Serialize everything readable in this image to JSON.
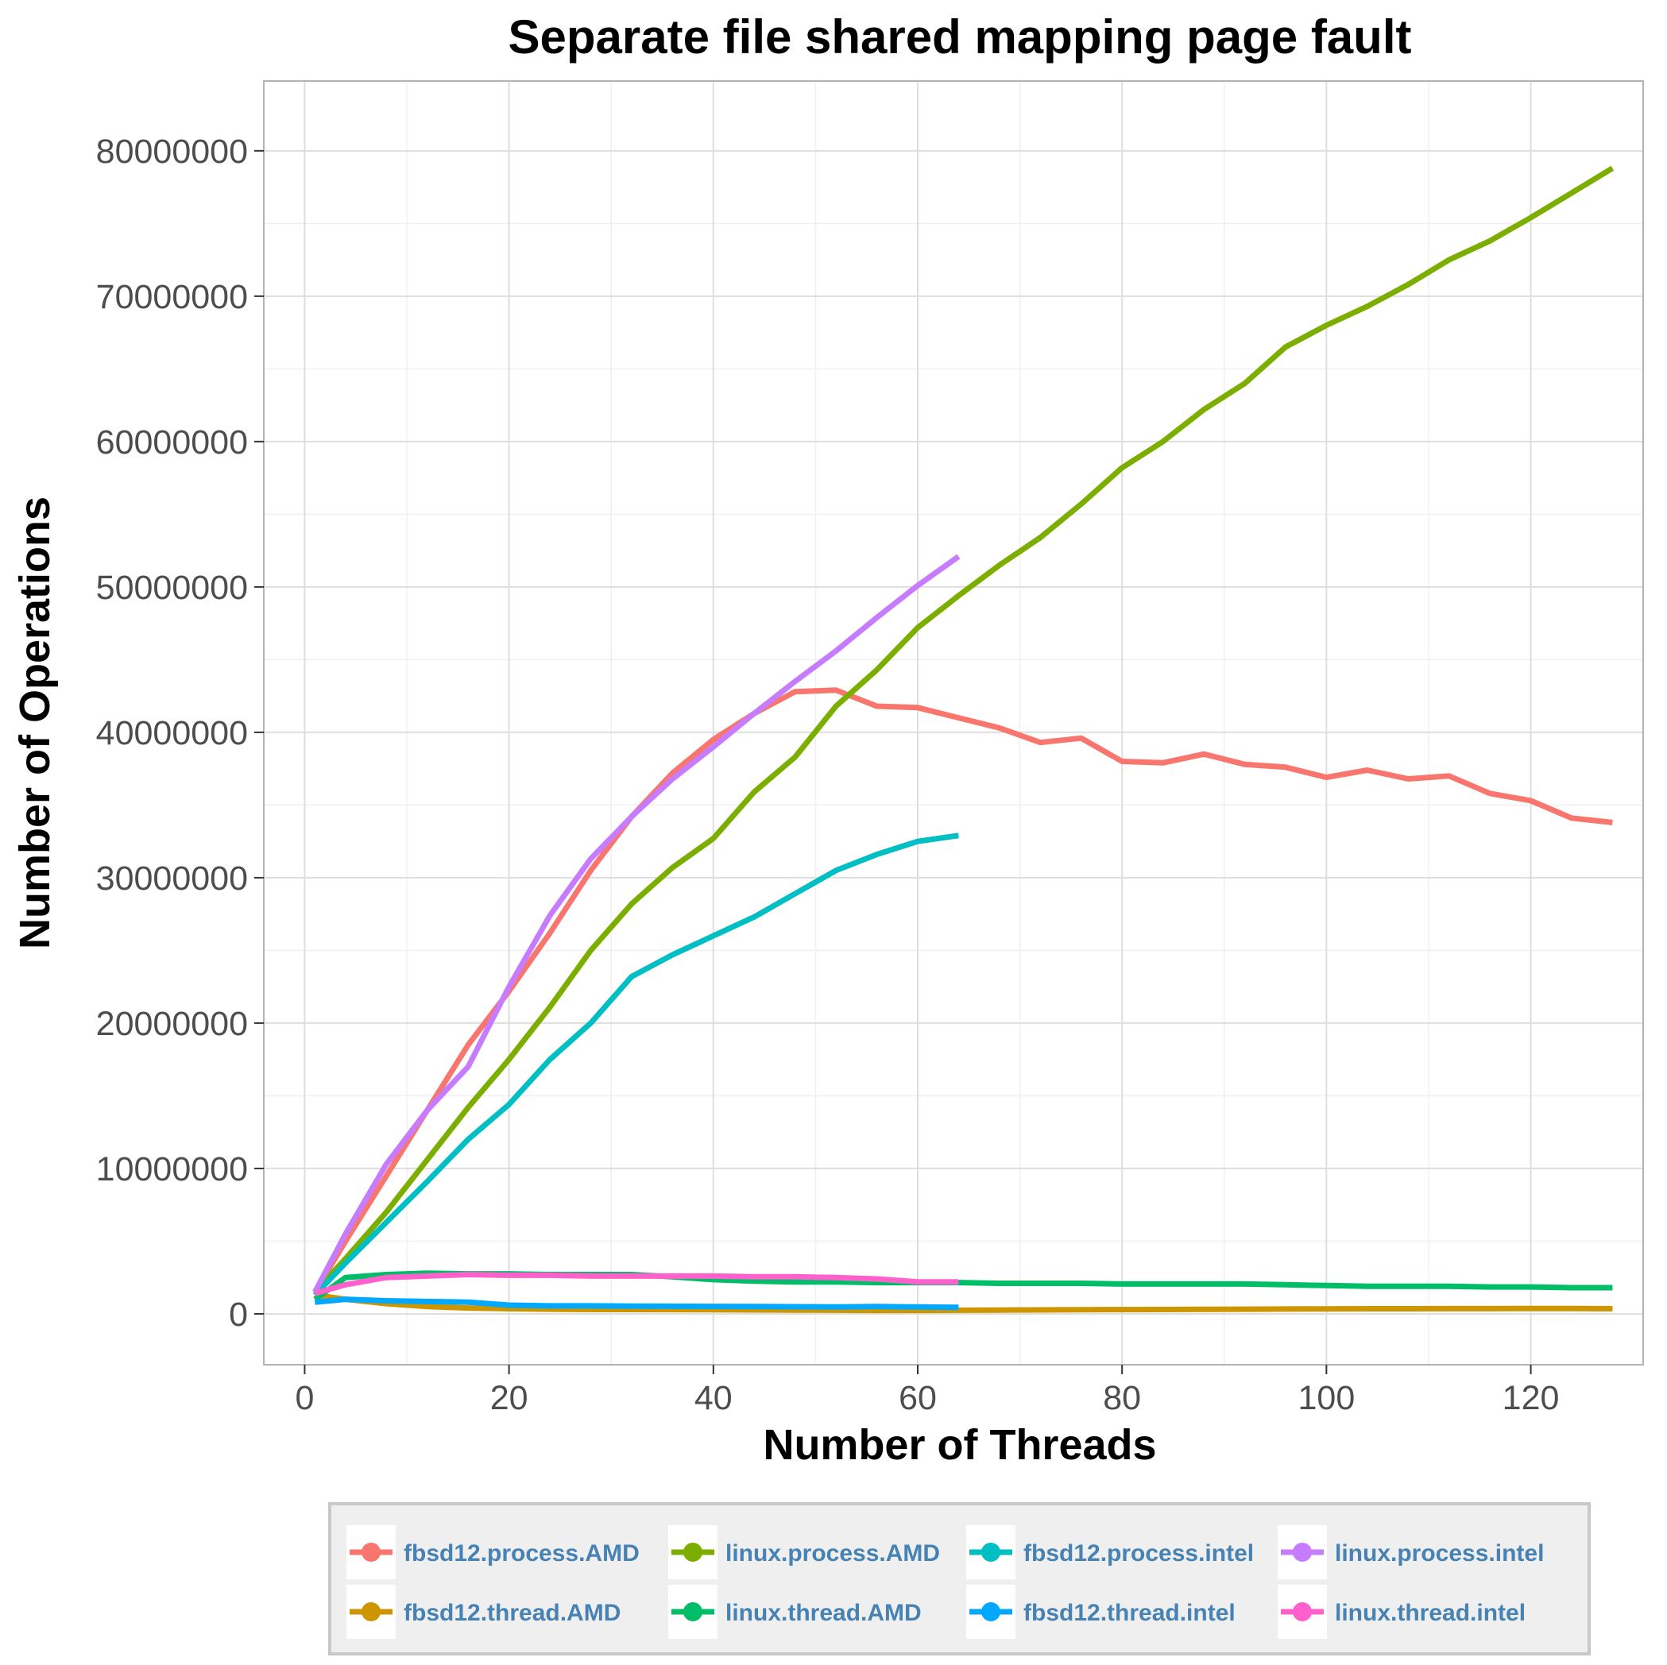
{
  "chart_data": {
    "type": "line",
    "title": "Separate file shared mapping page fault",
    "xlabel": "Number of Threads",
    "ylabel": "Number of Operations",
    "xlim": [
      -4,
      131
    ],
    "ylim": [
      -3500000,
      84800000
    ],
    "x_ticks": [
      0,
      20,
      40,
      60,
      80,
      100,
      120
    ],
    "y_ticks": [
      0,
      10000000,
      20000000,
      30000000,
      40000000,
      50000000,
      60000000,
      70000000,
      80000000
    ],
    "x_tick_labels": [
      "0",
      "20",
      "40",
      "60",
      "80",
      "100",
      "120"
    ],
    "y_tick_labels": [
      "0",
      "10000000",
      "20000000",
      "30000000",
      "40000000",
      "50000000",
      "60000000",
      "70000000",
      "80000000"
    ],
    "grid": true,
    "legend_position": "bottom",
    "series": [
      {
        "name": "fbsd12.process.AMD",
        "color": "#F8766D",
        "points": [
          [
            1,
            1500000
          ],
          [
            4,
            5000000
          ],
          [
            8,
            9500000
          ],
          [
            12,
            14000000
          ],
          [
            16,
            18500000
          ],
          [
            20,
            22200000
          ],
          [
            24,
            26200000
          ],
          [
            28,
            30500000
          ],
          [
            32,
            34200000
          ],
          [
            36,
            37200000
          ],
          [
            40,
            39500000
          ],
          [
            44,
            41300000
          ],
          [
            48,
            42800000
          ],
          [
            52,
            42900000
          ],
          [
            56,
            41800000
          ],
          [
            60,
            41700000
          ],
          [
            64,
            41000000
          ],
          [
            68,
            40300000
          ],
          [
            72,
            39300000
          ],
          [
            76,
            39600000
          ],
          [
            80,
            38000000
          ],
          [
            84,
            37900000
          ],
          [
            88,
            38500000
          ],
          [
            92,
            37800000
          ],
          [
            96,
            37600000
          ],
          [
            100,
            36900000
          ],
          [
            104,
            37400000
          ],
          [
            108,
            36800000
          ],
          [
            112,
            37000000
          ],
          [
            116,
            35800000
          ],
          [
            120,
            35300000
          ],
          [
            124,
            34100000
          ],
          [
            128,
            33800000
          ]
        ]
      },
      {
        "name": "fbsd12.thread.AMD",
        "color": "#CD9600",
        "points": [
          [
            1,
            1300000
          ],
          [
            4,
            1000000
          ],
          [
            8,
            700000
          ],
          [
            12,
            500000
          ],
          [
            16,
            400000
          ],
          [
            20,
            350000
          ],
          [
            24,
            320000
          ],
          [
            28,
            300000
          ],
          [
            32,
            300000
          ],
          [
            36,
            290000
          ],
          [
            40,
            280000
          ],
          [
            44,
            270000
          ],
          [
            48,
            260000
          ],
          [
            52,
            250000
          ],
          [
            56,
            240000
          ],
          [
            60,
            240000
          ],
          [
            64,
            250000
          ],
          [
            68,
            260000
          ],
          [
            72,
            270000
          ],
          [
            76,
            280000
          ],
          [
            80,
            290000
          ],
          [
            84,
            300000
          ],
          [
            88,
            310000
          ],
          [
            92,
            320000
          ],
          [
            96,
            330000
          ],
          [
            100,
            340000
          ],
          [
            104,
            350000
          ],
          [
            108,
            350000
          ],
          [
            112,
            360000
          ],
          [
            116,
            360000
          ],
          [
            120,
            370000
          ],
          [
            124,
            370000
          ],
          [
            128,
            350000
          ]
        ]
      },
      {
        "name": "linux.process.AMD",
        "color": "#7CAE00",
        "points": [
          [
            1,
            1500000
          ],
          [
            4,
            3800000
          ],
          [
            8,
            7000000
          ],
          [
            12,
            10600000
          ],
          [
            16,
            14200000
          ],
          [
            20,
            17500000
          ],
          [
            24,
            21100000
          ],
          [
            28,
            25000000
          ],
          [
            32,
            28200000
          ],
          [
            36,
            30700000
          ],
          [
            40,
            32700000
          ],
          [
            44,
            35900000
          ],
          [
            48,
            38300000
          ],
          [
            52,
            41800000
          ],
          [
            56,
            44300000
          ],
          [
            60,
            47200000
          ],
          [
            64,
            49400000
          ],
          [
            68,
            51500000
          ],
          [
            72,
            53400000
          ],
          [
            76,
            55700000
          ],
          [
            80,
            58200000
          ],
          [
            84,
            60000000
          ],
          [
            88,
            62200000
          ],
          [
            92,
            64000000
          ],
          [
            96,
            66500000
          ],
          [
            100,
            68000000
          ],
          [
            104,
            69300000
          ],
          [
            108,
            70800000
          ],
          [
            112,
            72500000
          ],
          [
            116,
            73800000
          ],
          [
            120,
            75400000
          ],
          [
            124,
            77100000
          ],
          [
            128,
            78800000
          ]
        ]
      },
      {
        "name": "linux.thread.AMD",
        "color": "#00BE67",
        "points": [
          [
            1,
            1000000
          ],
          [
            4,
            2500000
          ],
          [
            8,
            2700000
          ],
          [
            12,
            2800000
          ],
          [
            16,
            2750000
          ],
          [
            20,
            2750000
          ],
          [
            24,
            2700000
          ],
          [
            28,
            2700000
          ],
          [
            32,
            2700000
          ],
          [
            36,
            2550000
          ],
          [
            40,
            2350000
          ],
          [
            44,
            2250000
          ],
          [
            48,
            2200000
          ],
          [
            52,
            2200000
          ],
          [
            56,
            2150000
          ],
          [
            60,
            2150000
          ],
          [
            64,
            2150000
          ],
          [
            68,
            2100000
          ],
          [
            72,
            2100000
          ],
          [
            76,
            2100000
          ],
          [
            80,
            2050000
          ],
          [
            84,
            2050000
          ],
          [
            88,
            2050000
          ],
          [
            92,
            2050000
          ],
          [
            96,
            2000000
          ],
          [
            100,
            1950000
          ],
          [
            104,
            1900000
          ],
          [
            108,
            1900000
          ],
          [
            112,
            1900000
          ],
          [
            116,
            1850000
          ],
          [
            120,
            1850000
          ],
          [
            124,
            1800000
          ],
          [
            128,
            1800000
          ]
        ]
      },
      {
        "name": "fbsd12.process.intel",
        "color": "#00BFC4",
        "points": [
          [
            1,
            1300000
          ],
          [
            4,
            3500000
          ],
          [
            8,
            6300000
          ],
          [
            12,
            9100000
          ],
          [
            16,
            12000000
          ],
          [
            20,
            14400000
          ],
          [
            24,
            17500000
          ],
          [
            28,
            20000000
          ],
          [
            32,
            23200000
          ],
          [
            36,
            24700000
          ],
          [
            40,
            26000000
          ],
          [
            44,
            27300000
          ],
          [
            48,
            28900000
          ],
          [
            52,
            30500000
          ],
          [
            56,
            31600000
          ],
          [
            60,
            32500000
          ],
          [
            64,
            32900000
          ]
        ]
      },
      {
        "name": "fbsd12.thread.intel",
        "color": "#00A9FF",
        "points": [
          [
            1,
            800000
          ],
          [
            4,
            1000000
          ],
          [
            8,
            900000
          ],
          [
            12,
            850000
          ],
          [
            16,
            800000
          ],
          [
            20,
            600000
          ],
          [
            24,
            550000
          ],
          [
            28,
            550000
          ],
          [
            32,
            530000
          ],
          [
            36,
            520000
          ],
          [
            40,
            510000
          ],
          [
            44,
            500000
          ],
          [
            48,
            490000
          ],
          [
            52,
            480000
          ],
          [
            56,
            500000
          ],
          [
            60,
            470000
          ],
          [
            64,
            450000
          ]
        ]
      },
      {
        "name": "linux.process.intel",
        "color": "#C77CFF",
        "points": [
          [
            1,
            1500000
          ],
          [
            4,
            5500000
          ],
          [
            8,
            10300000
          ],
          [
            12,
            14000000
          ],
          [
            16,
            17000000
          ],
          [
            20,
            22500000
          ],
          [
            24,
            27400000
          ],
          [
            28,
            31300000
          ],
          [
            32,
            34200000
          ],
          [
            36,
            36800000
          ],
          [
            40,
            39000000
          ],
          [
            44,
            41300000
          ],
          [
            48,
            43500000
          ],
          [
            52,
            45600000
          ],
          [
            56,
            47900000
          ],
          [
            60,
            50100000
          ],
          [
            64,
            52100000
          ]
        ]
      },
      {
        "name": "linux.thread.intel",
        "color": "#FF61CC",
        "points": [
          [
            1,
            1400000
          ],
          [
            4,
            2000000
          ],
          [
            8,
            2500000
          ],
          [
            12,
            2600000
          ],
          [
            16,
            2700000
          ],
          [
            20,
            2650000
          ],
          [
            24,
            2650000
          ],
          [
            28,
            2600000
          ],
          [
            32,
            2600000
          ],
          [
            36,
            2600000
          ],
          [
            40,
            2600000
          ],
          [
            44,
            2550000
          ],
          [
            48,
            2550000
          ],
          [
            52,
            2500000
          ],
          [
            56,
            2400000
          ],
          [
            60,
            2200000
          ],
          [
            64,
            2200000
          ]
        ]
      }
    ]
  }
}
